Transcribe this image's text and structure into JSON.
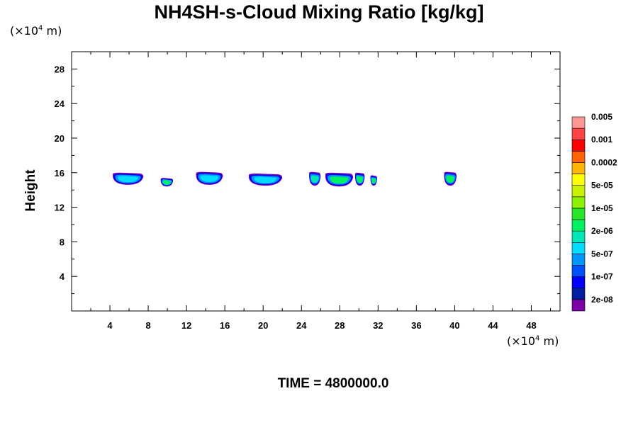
{
  "chart_data": {
    "type": "contour",
    "title": "NH4SH-s-Cloud Mixing Ratio [kg/kg]",
    "ylabel": "Height",
    "xunit_prefix": "(×10",
    "xunit_exp": "4",
    "xunit_suffix": " m)",
    "yunit_prefix": "(×10",
    "yunit_exp": "4",
    "yunit_suffix": " m)",
    "footer": "TIME = 4800000.0",
    "xlim": [
      0,
      51
    ],
    "ylim": [
      0,
      30
    ],
    "xticks": [
      4,
      8,
      12,
      16,
      20,
      24,
      28,
      32,
      36,
      40,
      44,
      48
    ],
    "yticks": [
      4,
      8,
      12,
      16,
      20,
      24,
      28
    ],
    "colorbar": {
      "colors": [
        "#7b00a8",
        "#001ea0",
        "#0000ff",
        "#0050ff",
        "#0096ff",
        "#00dcff",
        "#00e6b4",
        "#00f064",
        "#28e628",
        "#8cf000",
        "#c8f000",
        "#ffff00",
        "#ffb400",
        "#ff6400",
        "#ff0000",
        "#ff4646",
        "#ff9696"
      ],
      "labels": [
        "2e-08",
        "1e-07",
        "5e-07",
        "2e-06",
        "1e-05",
        "5e-05",
        "0.0002",
        "0.001",
        "0.005"
      ]
    },
    "clouds": [
      {
        "x": 4.3,
        "x2": 7.5,
        "y_top": 16.0,
        "y_bottom": 14.6,
        "core": "#00dcff"
      },
      {
        "x": 9.3,
        "x2": 10.6,
        "y_top": 15.4,
        "y_bottom": 14.4,
        "core": "#00f064"
      },
      {
        "x": 13.0,
        "x2": 15.8,
        "y_top": 16.1,
        "y_bottom": 14.6,
        "core": "#00dcff"
      },
      {
        "x": 18.5,
        "x2": 22.0,
        "y_top": 15.9,
        "y_bottom": 14.5,
        "core": "#00dcff"
      },
      {
        "x": 24.8,
        "x2": 26.0,
        "y_top": 16.1,
        "y_bottom": 14.5,
        "core": "#00e6b4"
      },
      {
        "x": 26.5,
        "x2": 29.4,
        "y_top": 16.0,
        "y_bottom": 14.4,
        "core": "#00f064"
      },
      {
        "x": 29.6,
        "x2": 30.6,
        "y_top": 16.0,
        "y_bottom": 14.5,
        "core": "#00f064"
      },
      {
        "x": 31.2,
        "x2": 31.9,
        "y_top": 15.7,
        "y_bottom": 14.5,
        "core": "#00f064"
      },
      {
        "x": 38.9,
        "x2": 40.2,
        "y_top": 16.1,
        "y_bottom": 14.5,
        "core": "#00f064"
      }
    ]
  }
}
